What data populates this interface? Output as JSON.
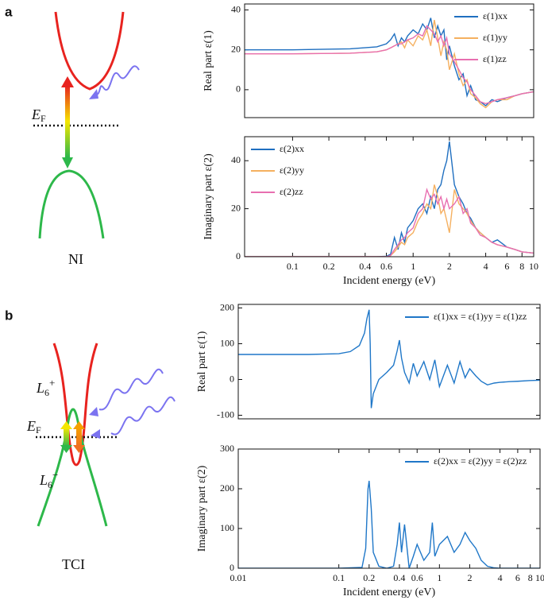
{
  "figure": {
    "panel_labels": [
      "a",
      "b"
    ]
  },
  "diagram_a": {
    "fermi": {
      "symbol": "E",
      "sub": "F"
    },
    "caption": "NI"
  },
  "diagram_b": {
    "fermi": {
      "symbol": "E",
      "sub": "F"
    },
    "upper": {
      "symbol": "L",
      "sub": "6",
      "sup": "+"
    },
    "lower": {
      "symbol": "L",
      "sub": "6",
      "sup": "−"
    },
    "caption": "TCI"
  },
  "chart_data": [
    {
      "type": "line",
      "ylabel": "Real part ε(1)",
      "log_x": true,
      "legend": "upper right",
      "x": [
        0.04,
        0.1,
        0.3,
        0.5,
        0.6,
        0.65,
        0.7,
        0.75,
        0.8,
        0.85,
        0.9,
        1,
        1.1,
        1.2,
        1.3,
        1.4,
        1.5,
        1.6,
        1.7,
        1.8,
        1.9,
        2,
        2.2,
        2.4,
        2.6,
        2.8,
        3,
        3.3,
        3.6,
        4,
        4.5,
        5,
        6,
        7,
        8,
        10
      ],
      "xlim": [
        0.04,
        10
      ],
      "ylim": [
        -14,
        43
      ],
      "yticks": [
        0,
        20,
        40
      ],
      "series": [
        {
          "name": "ε(1)xx",
          "color": "#1f6fc0",
          "values": [
            20,
            20,
            20.5,
            21.5,
            23,
            25,
            28,
            22,
            26,
            24,
            27,
            30,
            28,
            33,
            30,
            36,
            26,
            32,
            27,
            30,
            15,
            22,
            12,
            5,
            8,
            -3,
            2,
            -5,
            -6,
            -8,
            -5,
            -6,
            -4,
            -3,
            -2,
            -1
          ]
        },
        {
          "name": "ε(1)yy",
          "color": "#f5b060",
          "values": [
            18,
            18,
            18.3,
            19,
            20,
            21,
            22,
            23,
            24,
            21,
            25,
            22,
            27,
            25,
            30,
            22,
            35,
            26,
            17,
            24,
            20,
            10,
            18,
            8,
            2,
            5,
            -2,
            -4,
            -7,
            -9,
            -6,
            -5,
            -5,
            -3,
            -2,
            -1
          ]
        },
        {
          "name": "ε(1)zz",
          "color": "#e86fb0",
          "values": [
            18,
            18,
            18.3,
            19,
            20,
            21,
            22,
            23,
            23,
            24,
            25,
            26,
            28,
            27,
            32,
            30,
            28,
            24,
            27,
            22,
            26,
            18,
            14,
            10,
            6,
            4,
            0,
            -3,
            -6,
            -7,
            -6,
            -5,
            -4,
            -3,
            -2,
            -1
          ]
        }
      ]
    },
    {
      "type": "line",
      "ylabel": "Imaginary part ε(2)",
      "xlabel": "Incident energy (eV)",
      "log_x": true,
      "legend": "upper left",
      "x": [
        0.04,
        0.1,
        0.3,
        0.5,
        0.6,
        0.65,
        0.7,
        0.75,
        0.8,
        0.85,
        0.9,
        1,
        1.1,
        1.2,
        1.3,
        1.4,
        1.5,
        1.6,
        1.7,
        1.8,
        1.9,
        2,
        2.2,
        2.4,
        2.6,
        2.8,
        3,
        3.3,
        3.6,
        4,
        4.5,
        5,
        6,
        7,
        8,
        10
      ],
      "xlim": [
        0.04,
        10
      ],
      "ylim": [
        0,
        50
      ],
      "yticks": [
        0,
        20,
        40
      ],
      "xticks": [
        0.1,
        0.2,
        0.4,
        0.6,
        1,
        2,
        4,
        6,
        8,
        10
      ],
      "series": [
        {
          "name": "ε(2)xx",
          "color": "#1f6fc0",
          "values": [
            0,
            0,
            0,
            0,
            0.2,
            1,
            8,
            3,
            10,
            6,
            12,
            15,
            20,
            22,
            18,
            25,
            20,
            28,
            30,
            36,
            40,
            48,
            30,
            25,
            22,
            18,
            16,
            12,
            10,
            8,
            6,
            7,
            4,
            3,
            2,
            1.5
          ]
        },
        {
          "name": "ε(2)yy",
          "color": "#f5b060",
          "values": [
            0,
            0,
            0,
            0,
            0,
            0.5,
            2,
            4,
            6,
            5,
            8,
            10,
            15,
            18,
            22,
            20,
            30,
            25,
            18,
            20,
            15,
            10,
            28,
            22,
            20,
            18,
            15,
            12,
            10,
            8,
            6,
            5,
            4,
            3,
            2,
            1.5
          ]
        },
        {
          "name": "ε(2)zz",
          "color": "#e86fb0",
          "values": [
            0,
            0,
            0,
            0,
            0,
            0.5,
            3,
            5,
            7,
            8,
            10,
            12,
            18,
            20,
            28,
            24,
            26,
            22,
            25,
            20,
            24,
            20,
            22,
            25,
            18,
            20,
            14,
            12,
            9,
            8,
            6,
            5,
            4,
            3,
            2,
            1.5
          ]
        }
      ]
    },
    {
      "type": "line",
      "ylabel": "Real part ε(1)",
      "log_x": true,
      "legend": "upper right",
      "x": [
        0.01,
        0.05,
        0.1,
        0.13,
        0.16,
        0.18,
        0.19,
        0.2,
        0.205,
        0.21,
        0.22,
        0.25,
        0.3,
        0.35,
        0.38,
        0.4,
        0.42,
        0.45,
        0.5,
        0.55,
        0.6,
        0.7,
        0.8,
        0.9,
        1,
        1.2,
        1.4,
        1.6,
        1.8,
        2,
        2.3,
        2.6,
        3,
        3.5,
        4,
        5,
        6,
        8,
        10
      ],
      "xlim": [
        0.01,
        10
      ],
      "ylim": [
        -110,
        210
      ],
      "yticks": [
        -100,
        0,
        100,
        200
      ],
      "series": [
        {
          "name": "ε(1)xx = ε(1)yy = ε(1)zz",
          "color": "#1f77c8",
          "values": [
            70,
            70,
            72,
            78,
            95,
            130,
            170,
            195,
            100,
            -80,
            -40,
            0,
            20,
            40,
            80,
            110,
            60,
            20,
            -10,
            45,
            10,
            50,
            0,
            55,
            -20,
            40,
            -10,
            50,
            5,
            30,
            10,
            -5,
            -15,
            -10,
            -8,
            -6,
            -5,
            -3,
            -2
          ]
        }
      ]
    },
    {
      "type": "line",
      "ylabel": "Imaginary part ε(2)",
      "xlabel": "Incident energy (eV)",
      "log_x": true,
      "legend": "upper right",
      "x": [
        0.01,
        0.1,
        0.17,
        0.185,
        0.195,
        0.2,
        0.21,
        0.22,
        0.25,
        0.3,
        0.35,
        0.38,
        0.4,
        0.42,
        0.45,
        0.5,
        0.55,
        0.6,
        0.7,
        0.8,
        0.85,
        0.9,
        1,
        1.2,
        1.4,
        1.6,
        1.8,
        2,
        2.3,
        2.6,
        3,
        3.5,
        4,
        6,
        10
      ],
      "xlim": [
        0.01,
        10
      ],
      "ylim": [
        0,
        300
      ],
      "yticks": [
        0,
        100,
        200,
        300
      ],
      "xticks": [
        0.01,
        0.1,
        0.2,
        0.4,
        0.6,
        1,
        2,
        4,
        6,
        8,
        10
      ],
      "series": [
        {
          "name": "ε(2)xx = ε(2)yy = ε(2)zz",
          "color": "#1f77c8",
          "values": [
            0,
            0,
            2,
            50,
            200,
            220,
            150,
            40,
            5,
            0,
            5,
            60,
            115,
            40,
            110,
            0,
            30,
            60,
            20,
            40,
            115,
            30,
            60,
            80,
            40,
            60,
            90,
            70,
            50,
            20,
            5,
            1,
            0,
            0,
            0
          ]
        }
      ]
    }
  ]
}
